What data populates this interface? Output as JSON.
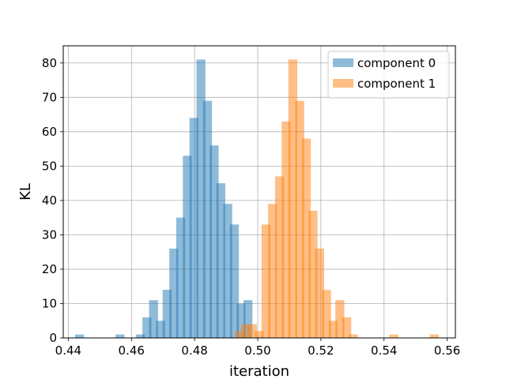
{
  "chart_data": {
    "type": "bar",
    "xlabel": "iteration",
    "ylabel": "KL",
    "xlim": [
      0.4384,
      0.5626
    ],
    "ylim": [
      0,
      85
    ],
    "grid": true,
    "legend_position": "top-right",
    "x_ticks": [
      "0.44",
      "0.46",
      "0.48",
      "0.50",
      "0.52",
      "0.54",
      "0.56"
    ],
    "y_ticks": [
      "0",
      "10",
      "20",
      "30",
      "40",
      "50",
      "60",
      "70",
      "80"
    ],
    "bin_width": 0.00284,
    "series": [
      {
        "name": "component 0",
        "color": "#1f77b4",
        "opacity": 0.5,
        "bins": [
          {
            "x": 0.4436,
            "count": 1
          },
          {
            "x": 0.4564,
            "count": 1
          },
          {
            "x": 0.4628,
            "count": 1
          },
          {
            "x": 0.4649,
            "count": 6
          },
          {
            "x": 0.467,
            "count": 11
          },
          {
            "x": 0.4692,
            "count": 5
          },
          {
            "x": 0.4713,
            "count": 14
          },
          {
            "x": 0.4734,
            "count": 26
          },
          {
            "x": 0.4756,
            "count": 35
          },
          {
            "x": 0.4777,
            "count": 53
          },
          {
            "x": 0.4798,
            "count": 64
          },
          {
            "x": 0.482,
            "count": 81
          },
          {
            "x": 0.4841,
            "count": 69
          },
          {
            "x": 0.4862,
            "count": 56
          },
          {
            "x": 0.4883,
            "count": 45
          },
          {
            "x": 0.4905,
            "count": 39
          },
          {
            "x": 0.4926,
            "count": 33
          },
          {
            "x": 0.4947,
            "count": 10
          },
          {
            "x": 0.4969,
            "count": 11
          }
        ]
      },
      {
        "name": "component 1",
        "color": "#ff7f0e",
        "opacity": 0.5,
        "bins": [
          {
            "x": 0.4941,
            "count": 2
          },
          {
            "x": 0.4962,
            "count": 4
          },
          {
            "x": 0.4983,
            "count": 4
          },
          {
            "x": 0.5005,
            "count": 2
          },
          {
            "x": 0.5026,
            "count": 33
          },
          {
            "x": 0.5047,
            "count": 39
          },
          {
            "x": 0.5069,
            "count": 47
          },
          {
            "x": 0.509,
            "count": 63
          },
          {
            "x": 0.5111,
            "count": 81
          },
          {
            "x": 0.5133,
            "count": 69
          },
          {
            "x": 0.5154,
            "count": 58
          },
          {
            "x": 0.5175,
            "count": 37
          },
          {
            "x": 0.5196,
            "count": 26
          },
          {
            "x": 0.5218,
            "count": 14
          },
          {
            "x": 0.5239,
            "count": 5
          },
          {
            "x": 0.526,
            "count": 11
          },
          {
            "x": 0.5282,
            "count": 6
          },
          {
            "x": 0.5303,
            "count": 1
          },
          {
            "x": 0.5431,
            "count": 1
          },
          {
            "x": 0.5559,
            "count": 1
          }
        ]
      }
    ]
  }
}
